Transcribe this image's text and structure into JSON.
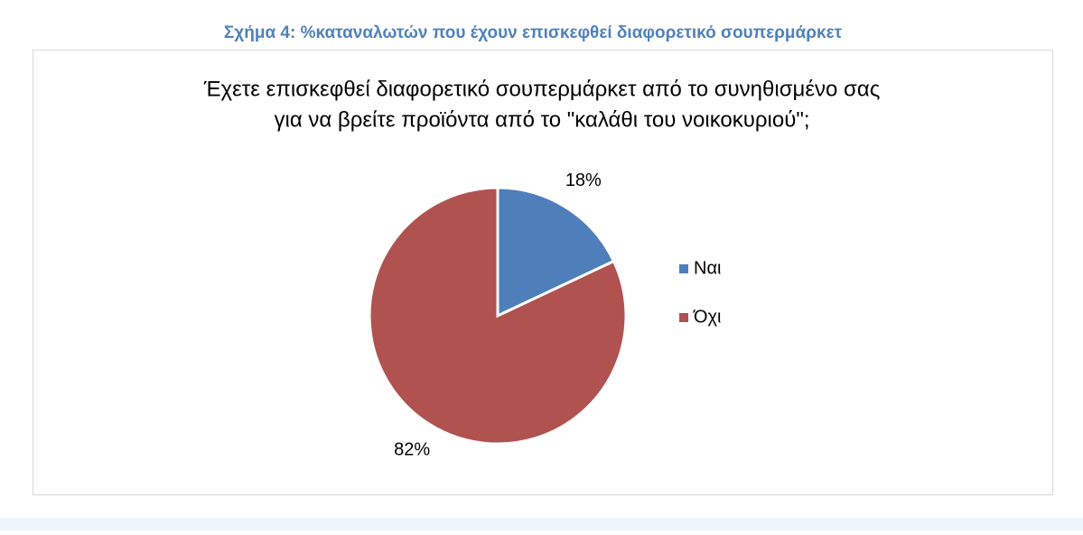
{
  "caption": "Σχήμα 4: %καταναλωτών που έχουν επισκεφθεί διαφορετικό σουπερμάρκετ",
  "chart_data": {
    "type": "pie",
    "title": [
      "Έχετε επισκεφθεί διαφορετικό σουπερμάρκετ από το συνηθισμένο σας",
      "για να βρείτε προϊόντα από το \"καλάθι του νοικοκυριού\";"
    ],
    "categories": [
      "Ναι",
      "Όχι"
    ],
    "values": [
      18,
      82
    ],
    "value_labels": [
      "18%",
      "82%"
    ],
    "colors": [
      "#4f7fbb",
      "#b0524f"
    ],
    "legend": "right"
  }
}
